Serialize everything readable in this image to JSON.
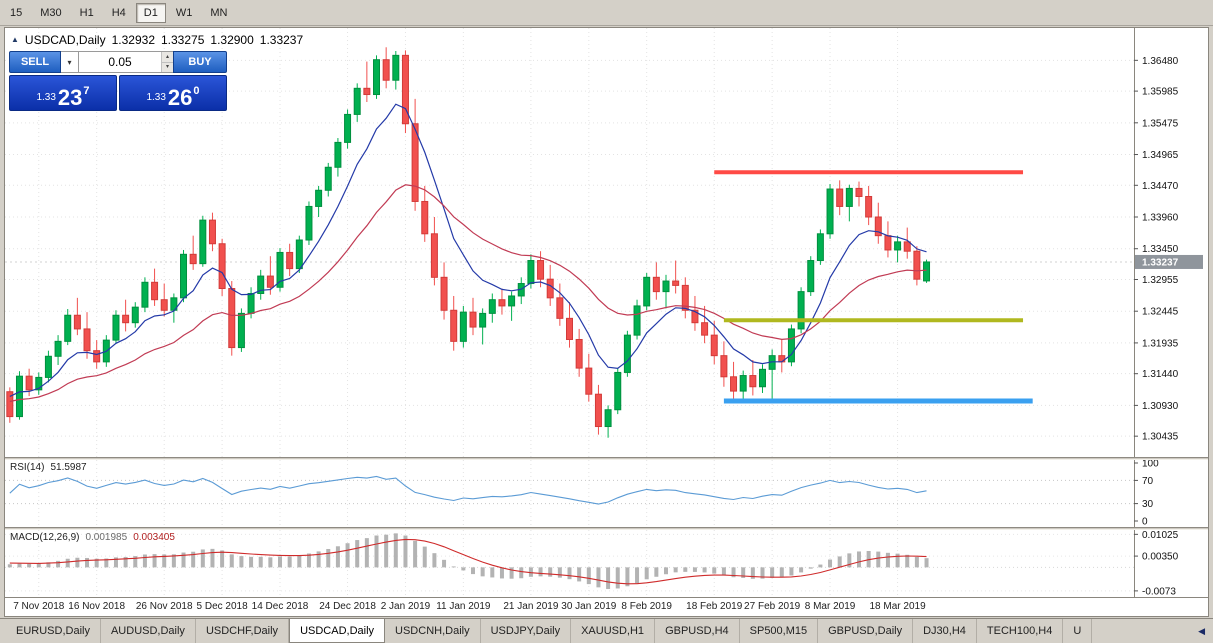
{
  "timeframe_toolbar": {
    "buttons": [
      {
        "label": "15",
        "active": false
      },
      {
        "label": "M30",
        "active": false
      },
      {
        "label": "H1",
        "active": false
      },
      {
        "label": "H4",
        "active": false
      },
      {
        "label": "D1",
        "active": true
      },
      {
        "label": "W1",
        "active": false
      },
      {
        "label": "MN",
        "active": false
      }
    ]
  },
  "chart_header": {
    "symbol": "USDCAD,Daily",
    "open": "1.32932",
    "high": "1.33275",
    "low": "1.32900",
    "close": "1.33237"
  },
  "trade_panel": {
    "sell_label": "SELL",
    "buy_label": "BUY",
    "volume": "0.05",
    "sell": {
      "prefix": "1.33",
      "pips": "23",
      "sup": "7"
    },
    "buy": {
      "prefix": "1.33",
      "pips": "26",
      "sup": "0"
    }
  },
  "bottom_tabs": {
    "tabs": [
      {
        "label": "EURUSD,Daily",
        "active": false
      },
      {
        "label": "AUDUSD,Daily",
        "active": false
      },
      {
        "label": "USDCHF,Daily",
        "active": false
      },
      {
        "label": "USDCAD,Daily",
        "active": true
      },
      {
        "label": "USDCNH,Daily",
        "active": false
      },
      {
        "label": "USDJPY,Daily",
        "active": false
      },
      {
        "label": "XAUUSD,H1",
        "active": false
      },
      {
        "label": "GBPUSD,H4",
        "active": false
      },
      {
        "label": "SP500,M15",
        "active": false
      },
      {
        "label": "GBPUSD,Daily",
        "active": false
      },
      {
        "label": "DJ30,H4",
        "active": false
      },
      {
        "label": "TECH100,H4",
        "active": false
      },
      {
        "label": "U",
        "active": false
      }
    ],
    "scroll_left_icon": "◀"
  },
  "chart_data": {
    "type": "candlestick",
    "symbol": "USDCAD",
    "timeframe": "Daily",
    "slots": 117,
    "price_range": [
      1.301,
      1.37
    ],
    "price_axis": [
      "1.36480",
      "1.35985",
      "1.35475",
      "1.34965",
      "1.34470",
      "1.33960",
      "1.33450",
      "1.32955",
      "1.32445",
      "1.31935",
      "1.31440",
      "1.30930",
      "1.30435"
    ],
    "bid": 1.33237,
    "bid_label": "1.33237",
    "up_color": "#00b050",
    "up_border": "#008f3e",
    "down_color": "#f1504e",
    "down_border": "#d23b39",
    "date_ticks": [
      {
        "index": 3,
        "label": "7 Nov 2018"
      },
      {
        "index": 9,
        "label": "16 Nov 2018"
      },
      {
        "index": 16,
        "label": "26 Nov 2018"
      },
      {
        "index": 22,
        "label": "5 Dec 2018"
      },
      {
        "index": 28,
        "label": "14 Dec 2018"
      },
      {
        "index": 35,
        "label": "24 Dec 2018"
      },
      {
        "index": 41,
        "label": "2 Jan 2019"
      },
      {
        "index": 47,
        "label": "11 Jan 2019"
      },
      {
        "index": 54,
        "label": "21 Jan 2019"
      },
      {
        "index": 60,
        "label": "30 Jan 2019"
      },
      {
        "index": 66,
        "label": "8 Feb 2019"
      },
      {
        "index": 73,
        "label": "18 Feb 2019"
      },
      {
        "index": 79,
        "label": "27 Feb 2019"
      },
      {
        "index": 85,
        "label": "8 Mar 2019"
      },
      {
        "index": 92,
        "label": "18 Mar 2019"
      }
    ],
    "warmup_closes": [
      1.306,
      1.3075,
      1.3068,
      1.3082,
      1.3095,
      1.3088,
      1.3102,
      1.3096,
      1.311,
      1.3104,
      1.3118,
      1.3109,
      1.3122,
      1.3115,
      1.3128,
      1.312,
      1.3132,
      1.3125,
      1.3118,
      1.3108
    ],
    "candles": [
      [
        1.3115,
        1.3122,
        1.3065,
        1.3075
      ],
      [
        1.3075,
        1.3148,
        1.307,
        1.314
      ],
      [
        1.314,
        1.3152,
        1.3108,
        1.3118
      ],
      [
        1.3118,
        1.3146,
        1.311,
        1.3138
      ],
      [
        1.3138,
        1.3181,
        1.313,
        1.3172
      ],
      [
        1.3172,
        1.3206,
        1.3158,
        1.3196
      ],
      [
        1.3196,
        1.3248,
        1.319,
        1.3238
      ],
      [
        1.3238,
        1.3266,
        1.3206,
        1.3216
      ],
      [
        1.3216,
        1.3243,
        1.3168,
        1.3181
      ],
      [
        1.3181,
        1.3198,
        1.3152,
        1.3163
      ],
      [
        1.3163,
        1.3206,
        1.3155,
        1.3198
      ],
      [
        1.3198,
        1.3246,
        1.3192,
        1.3238
      ],
      [
        1.3238,
        1.3263,
        1.3212,
        1.3226
      ],
      [
        1.3226,
        1.3259,
        1.3218,
        1.3251
      ],
      [
        1.3251,
        1.3299,
        1.3243,
        1.3291
      ],
      [
        1.3291,
        1.3313,
        1.3253,
        1.3263
      ],
      [
        1.3263,
        1.3289,
        1.3236,
        1.3246
      ],
      [
        1.3246,
        1.3273,
        1.3226,
        1.3266
      ],
      [
        1.3266,
        1.3343,
        1.3259,
        1.3336
      ],
      [
        1.3336,
        1.3366,
        1.3311,
        1.3321
      ],
      [
        1.3321,
        1.3398,
        1.3316,
        1.3391
      ],
      [
        1.3391,
        1.3403,
        1.3341,
        1.3353
      ],
      [
        1.3353,
        1.3361,
        1.3269,
        1.3281
      ],
      [
        1.3281,
        1.3293,
        1.3173,
        1.3186
      ],
      [
        1.3186,
        1.3249,
        1.3179,
        1.3241
      ],
      [
        1.3241,
        1.3283,
        1.3233,
        1.3273
      ],
      [
        1.3273,
        1.3311,
        1.3263,
        1.3301
      ],
      [
        1.3301,
        1.3333,
        1.3271,
        1.3283
      ],
      [
        1.3283,
        1.3346,
        1.3276,
        1.3339
      ],
      [
        1.3339,
        1.3353,
        1.3301,
        1.3313
      ],
      [
        1.3313,
        1.3366,
        1.3306,
        1.3359
      ],
      [
        1.3359,
        1.3421,
        1.3351,
        1.3413
      ],
      [
        1.3413,
        1.3446,
        1.3396,
        1.3439
      ],
      [
        1.3439,
        1.3483,
        1.3429,
        1.3476
      ],
      [
        1.3476,
        1.3523,
        1.3461,
        1.3516
      ],
      [
        1.3516,
        1.3569,
        1.3506,
        1.3561
      ],
      [
        1.3561,
        1.3611,
        1.3549,
        1.3603
      ],
      [
        1.3603,
        1.3646,
        1.3581,
        1.3593
      ],
      [
        1.3593,
        1.3656,
        1.3586,
        1.3649
      ],
      [
        1.3649,
        1.3669,
        1.3603,
        1.3616
      ],
      [
        1.3616,
        1.3663,
        1.3601,
        1.3656
      ],
      [
        1.3656,
        1.3664,
        1.3531,
        1.3546
      ],
      [
        1.3546,
        1.3586,
        1.3406,
        1.3421
      ],
      [
        1.3421,
        1.3446,
        1.3356,
        1.3369
      ],
      [
        1.3369,
        1.3396,
        1.3286,
        1.3299
      ],
      [
        1.3299,
        1.3323,
        1.3231,
        1.3246
      ],
      [
        1.3246,
        1.3269,
        1.3181,
        1.3196
      ],
      [
        1.3196,
        1.3253,
        1.3186,
        1.3243
      ],
      [
        1.3243,
        1.3266,
        1.3206,
        1.3219
      ],
      [
        1.3219,
        1.3249,
        1.3191,
        1.3241
      ],
      [
        1.3241,
        1.3273,
        1.3226,
        1.3263
      ],
      [
        1.3263,
        1.3281,
        1.3239,
        1.3253
      ],
      [
        1.3253,
        1.3276,
        1.3229,
        1.3269
      ],
      [
        1.3269,
        1.3299,
        1.3256,
        1.3289
      ],
      [
        1.3289,
        1.3336,
        1.3281,
        1.3326
      ],
      [
        1.3326,
        1.3341,
        1.3283,
        1.3296
      ],
      [
        1.3296,
        1.3319,
        1.3253,
        1.3266
      ],
      [
        1.3266,
        1.3289,
        1.3221,
        1.3233
      ],
      [
        1.3233,
        1.3259,
        1.3186,
        1.3199
      ],
      [
        1.3199,
        1.3216,
        1.3139,
        1.3153
      ],
      [
        1.3153,
        1.3176,
        1.3099,
        1.3111
      ],
      [
        1.3111,
        1.3126,
        1.3046,
        1.3059
      ],
      [
        1.3059,
        1.3093,
        1.3041,
        1.3086
      ],
      [
        1.3086,
        1.3153,
        1.3079,
        1.3146
      ],
      [
        1.3146,
        1.3213,
        1.3139,
        1.3206
      ],
      [
        1.3206,
        1.3263,
        1.3199,
        1.3253
      ],
      [
        1.3253,
        1.3306,
        1.3246,
        1.3299
      ],
      [
        1.3299,
        1.3323,
        1.3263,
        1.3276
      ],
      [
        1.3276,
        1.3303,
        1.3249,
        1.3293
      ],
      [
        1.3293,
        1.3326,
        1.3273,
        1.3286
      ],
      [
        1.3286,
        1.3299,
        1.3233,
        1.3246
      ],
      [
        1.3246,
        1.3269,
        1.3213,
        1.3226
      ],
      [
        1.3226,
        1.3253,
        1.3193,
        1.3206
      ],
      [
        1.3206,
        1.3229,
        1.3159,
        1.3173
      ],
      [
        1.3173,
        1.3196,
        1.3123,
        1.3139
      ],
      [
        1.3139,
        1.3163,
        1.3099,
        1.3116
      ],
      [
        1.3116,
        1.3149,
        1.3103,
        1.3141
      ],
      [
        1.3141,
        1.3166,
        1.3109,
        1.3123
      ],
      [
        1.3123,
        1.3159,
        1.3113,
        1.3151
      ],
      [
        1.3151,
        1.3183,
        1.3099,
        1.3173
      ],
      [
        1.3173,
        1.3199,
        1.3146,
        1.3163
      ],
      [
        1.3163,
        1.3223,
        1.3156,
        1.3216
      ],
      [
        1.3216,
        1.3283,
        1.3209,
        1.3276
      ],
      [
        1.3276,
        1.3333,
        1.3269,
        1.3326
      ],
      [
        1.3326,
        1.3376,
        1.3319,
        1.3369
      ],
      [
        1.3369,
        1.3449,
        1.3361,
        1.3441
      ],
      [
        1.3441,
        1.3455,
        1.3399,
        1.3413
      ],
      [
        1.3413,
        1.3448,
        1.3389,
        1.3442
      ],
      [
        1.3442,
        1.3453,
        1.3413,
        1.3429
      ],
      [
        1.3429,
        1.3446,
        1.3383,
        1.3396
      ],
      [
        1.3396,
        1.3419,
        1.3353,
        1.3366
      ],
      [
        1.3366,
        1.3389,
        1.3331,
        1.3343
      ],
      [
        1.3343,
        1.3366,
        1.3323,
        1.3356
      ],
      [
        1.3356,
        1.3379,
        1.3329,
        1.3341
      ],
      [
        1.3341,
        1.3349,
        1.3286,
        1.3296
      ],
      [
        1.32932,
        1.33275,
        1.329,
        1.33237
      ]
    ],
    "moving_averages": [
      {
        "name": "fast-ma",
        "period": 8,
        "color": "#243aa8"
      },
      {
        "name": "slow-ma",
        "period": 24,
        "color": "#c13b54"
      }
    ],
    "hlines": [
      {
        "name": "resistance-line",
        "price": 1.3468,
        "from": 73,
        "to": 105,
        "color": "#ff4a45",
        "width": 4
      },
      {
        "name": "mid-support-line",
        "price": 1.323,
        "from": 74,
        "to": 105,
        "color": "#b0b81f",
        "width": 4
      },
      {
        "name": "lower-support-line",
        "price": 1.31,
        "from": 74,
        "to": 106,
        "color": "#3aa0f0",
        "width": 5
      }
    ],
    "rsi": {
      "label": "RSI(14)",
      "value": "51.5987",
      "period": 14,
      "color": "#5b9bd5",
      "range": [
        0,
        100
      ],
      "axis": [
        {
          "v": 100,
          "label": "100",
          "dotted": false
        },
        {
          "v": 70,
          "label": "70",
          "dotted": true
        },
        {
          "v": 30,
          "label": "30",
          "dotted": true
        },
        {
          "v": 0,
          "label": "0",
          "dotted": false
        }
      ]
    },
    "macd": {
      "label": "MACD(12,26,9)",
      "value_main": "0.001985",
      "value_signal": "0.003405",
      "fast": 12,
      "slow": 26,
      "signal": 9,
      "hist_color": "#b3b3b3",
      "signal_color": "#cf2b2b",
      "range": [
        -0.0092,
        0.0116
      ],
      "axis": [
        {
          "v": 0.01025,
          "label": "0.01025"
        },
        {
          "v": 0.0035,
          "label": "0.00350"
        },
        {
          "v": -0.0073,
          "label": "-0.0073"
        }
      ]
    }
  }
}
